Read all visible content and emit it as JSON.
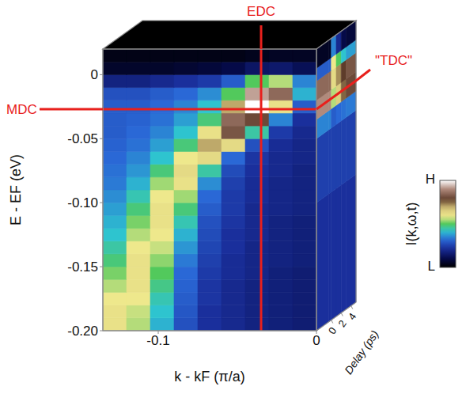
{
  "chart_data": {
    "type": "heatmap",
    "xlabel": "k - kF (π/a)",
    "ylabel": "E - EF (eV)",
    "xlim": [
      -0.135,
      0
    ],
    "xticks": [
      -0.1,
      0
    ],
    "ylim": [
      -0.2,
      0.02
    ],
    "yticks": [
      0,
      -0.05,
      {
        "value": -0.1,
        "label": "-0.10"
      },
      -0.15,
      {
        "value": -0.2,
        "label": "-0.20"
      }
    ],
    "grid": false,
    "x_edges": [
      -0.135,
      -0.12,
      -0.105,
      -0.09,
      -0.075,
      -0.06,
      -0.045,
      -0.03,
      -0.015,
      0
    ],
    "y_edges": [
      -0.2,
      -0.19,
      -0.18,
      -0.17,
      -0.16,
      -0.15,
      -0.14,
      -0.13,
      -0.12,
      -0.11,
      -0.1,
      -0.09,
      -0.08,
      -0.07,
      -0.06,
      -0.05,
      -0.04,
      -0.03,
      -0.02,
      -0.01,
      0,
      0.01,
      0.02
    ],
    "cells": [
      [
        0.6,
        0.55,
        0.4,
        0.28,
        0.22,
        0.2,
        0.18,
        0.17,
        0.16
      ],
      [
        0.6,
        0.56,
        0.42,
        0.29,
        0.22,
        0.2,
        0.18,
        0.17,
        0.16
      ],
      [
        0.58,
        0.58,
        0.44,
        0.3,
        0.23,
        0.2,
        0.18,
        0.17,
        0.16
      ],
      [
        0.55,
        0.6,
        0.47,
        0.31,
        0.23,
        0.2,
        0.18,
        0.17,
        0.16
      ],
      [
        0.52,
        0.6,
        0.5,
        0.32,
        0.24,
        0.21,
        0.19,
        0.17,
        0.16
      ],
      [
        0.48,
        0.6,
        0.53,
        0.34,
        0.25,
        0.21,
        0.19,
        0.18,
        0.17
      ],
      [
        0.45,
        0.58,
        0.56,
        0.37,
        0.26,
        0.22,
        0.19,
        0.18,
        0.17
      ],
      [
        0.42,
        0.55,
        0.58,
        0.4,
        0.27,
        0.22,
        0.2,
        0.18,
        0.17
      ],
      [
        0.4,
        0.52,
        0.6,
        0.44,
        0.28,
        0.23,
        0.2,
        0.18,
        0.17
      ],
      [
        0.38,
        0.48,
        0.6,
        0.48,
        0.3,
        0.24,
        0.2,
        0.19,
        0.18
      ],
      [
        0.36,
        0.44,
        0.58,
        0.54,
        0.32,
        0.24,
        0.21,
        0.19,
        0.18
      ],
      [
        0.34,
        0.4,
        0.54,
        0.6,
        0.36,
        0.25,
        0.21,
        0.19,
        0.18
      ],
      [
        0.33,
        0.37,
        0.48,
        0.62,
        0.45,
        0.27,
        0.22,
        0.2,
        0.18
      ],
      [
        0.32,
        0.35,
        0.42,
        0.58,
        0.62,
        0.32,
        0.23,
        0.2,
        0.19
      ],
      [
        0.31,
        0.33,
        0.38,
        0.48,
        0.7,
        0.62,
        0.28,
        0.21,
        0.19
      ],
      [
        0.3,
        0.32,
        0.35,
        0.42,
        0.6,
        0.82,
        0.45,
        0.24,
        0.2
      ],
      [
        0.3,
        0.31,
        0.33,
        0.38,
        0.48,
        0.85,
        0.8,
        0.35,
        0.22
      ],
      [
        0.3,
        0.3,
        0.32,
        0.35,
        0.42,
        0.7,
        1,
        0.6,
        0.3
      ],
      [
        0.28,
        0.28,
        0.3,
        0.32,
        0.36,
        0.5,
        0.92,
        0.85,
        0.4
      ],
      [
        0.18,
        0.18,
        0.2,
        0.22,
        0.24,
        0.3,
        0.5,
        0.55,
        0.35
      ],
      [
        0.06,
        0.06,
        0.06,
        0.07,
        0.08,
        0.1,
        0.14,
        0.15,
        0.12
      ],
      [
        0.03,
        0.03,
        0.03,
        0.03,
        0.03,
        0.03,
        0.04,
        0.05,
        0.05
      ]
    ],
    "annotations": [
      {
        "text": "EDC",
        "x": -0.035
      },
      {
        "text": "MDC",
        "y": -0.027
      }
    ],
    "colorbar": {
      "label": "I(k,ω,t)",
      "range": [
        0,
        1
      ],
      "ticks": [
        {
          "value": 0,
          "label": "L"
        },
        {
          "value": 1,
          "label": "H"
        }
      ]
    },
    "delay_panel": {
      "xlabel": "Delay (ps)",
      "xlim": [
        -3,
        5
      ],
      "xticks": [
        0,
        2,
        4
      ],
      "x_edges": [
        -3,
        -0.5,
        0,
        1,
        2,
        3,
        5
      ],
      "y_edges": [
        -0.2,
        -0.1,
        -0.05,
        -0.035,
        -0.02,
        -0.005,
        0.005,
        0.02
      ],
      "cells": [
        [
          0.22,
          0.22,
          0.22,
          0.22,
          0.22,
          0.22
        ],
        [
          0.25,
          0.25,
          0.25,
          0.25,
          0.25,
          0.25
        ],
        [
          0.35,
          0.35,
          0.3,
          0.32,
          0.33,
          0.34
        ],
        [
          0.9,
          0.9,
          0.55,
          0.65,
          0.75,
          0.8
        ],
        [
          0.85,
          0.85,
          0.62,
          0.72,
          0.78,
          0.82
        ],
        [
          0.3,
          0.3,
          0.58,
          0.5,
          0.42,
          0.38
        ],
        [
          0.05,
          0.05,
          0.35,
          0.2,
          0.1,
          0.08
        ]
      ],
      "annotation": {
        "text": "\"TDC\"",
        "y": -0.027
      }
    }
  }
}
